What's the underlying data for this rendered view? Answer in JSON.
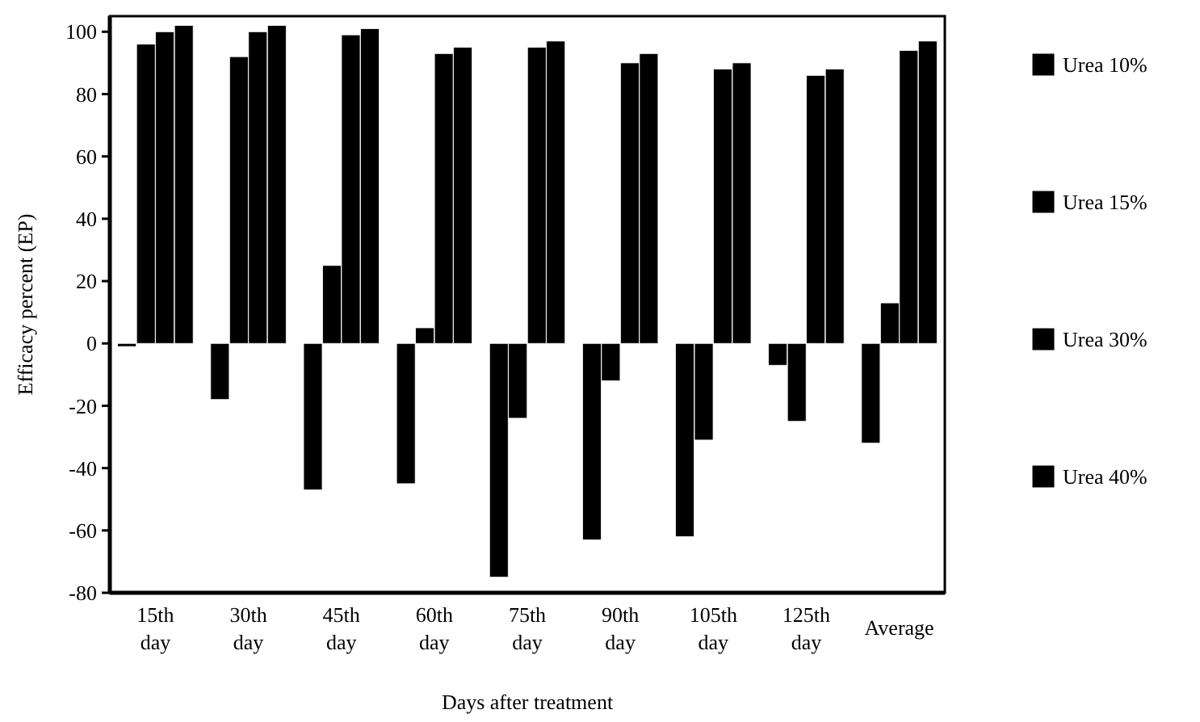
{
  "chart_data": {
    "type": "bar",
    "xlabel": "Days after treatment",
    "ylabel": "Efficacy percent (EP)",
    "categories": [
      "15th day",
      "30th day",
      "45th day",
      "60th day",
      "75th day",
      "90th day",
      "105th day",
      "125th day",
      "Average"
    ],
    "series": [
      {
        "name": "Urea 10%",
        "color": "#000000",
        "values": [
          -1,
          -18,
          -47,
          -45,
          -75,
          -63,
          -62,
          -7,
          -32
        ]
      },
      {
        "name": "Urea 15%",
        "color": "#000000",
        "values": [
          96,
          92,
          25,
          5,
          -24,
          -12,
          -31,
          -25,
          13
        ]
      },
      {
        "name": "Urea 30%",
        "color": "#000000",
        "values": [
          100,
          100,
          99,
          93,
          95,
          90,
          88,
          86,
          94
        ]
      },
      {
        "name": "Urea 40%",
        "color": "#000000",
        "values": [
          102,
          102,
          101,
          95,
          97,
          93,
          90,
          88,
          97
        ]
      }
    ],
    "ylim": [
      -80,
      105
    ],
    "yticks": [
      -80,
      -60,
      -40,
      -20,
      0,
      20,
      40,
      60,
      80,
      100
    ],
    "legend": "right",
    "grid": false
  }
}
